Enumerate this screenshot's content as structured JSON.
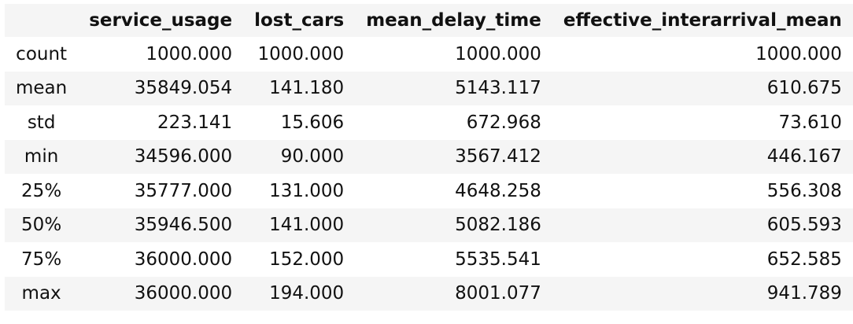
{
  "table": {
    "columns": [
      "service_usage",
      "lost_cars",
      "mean_delay_time",
      "effective_interarrival_mean"
    ],
    "rows": [
      {
        "label": "count",
        "values": [
          "1000.000",
          "1000.000",
          "1000.000",
          "1000.000"
        ]
      },
      {
        "label": "mean",
        "values": [
          "35849.054",
          "141.180",
          "5143.117",
          "610.675"
        ]
      },
      {
        "label": "std",
        "values": [
          "223.141",
          "15.606",
          "672.968",
          "73.610"
        ]
      },
      {
        "label": "min",
        "values": [
          "34596.000",
          "90.000",
          "3567.412",
          "446.167"
        ]
      },
      {
        "label": "25%",
        "values": [
          "35777.000",
          "131.000",
          "4648.258",
          "556.308"
        ]
      },
      {
        "label": "50%",
        "values": [
          "35946.500",
          "141.000",
          "5082.186",
          "605.593"
        ]
      },
      {
        "label": "75%",
        "values": [
          "36000.000",
          "152.000",
          "5535.541",
          "652.585"
        ]
      },
      {
        "label": "max",
        "values": [
          "36000.000",
          "194.000",
          "8001.077",
          "941.789"
        ]
      }
    ]
  }
}
